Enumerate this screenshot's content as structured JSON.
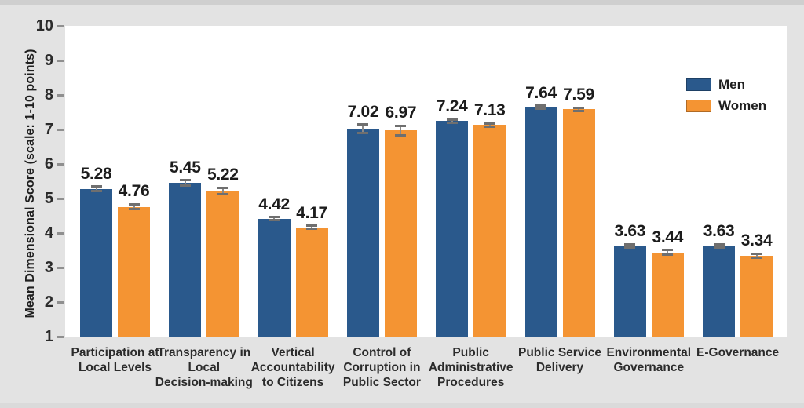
{
  "chart_data": {
    "type": "bar",
    "title": "",
    "xlabel": "",
    "ylabel": "Mean Dimensional Score (scale: 1-10 points)",
    "ylim": [
      1,
      10
    ],
    "yticks": [
      1,
      2,
      3,
      4,
      5,
      6,
      7,
      8,
      9,
      10
    ],
    "grid": false,
    "legend_position": "top-right-inside",
    "value_labels": true,
    "error_bars": true,
    "categories": [
      "Participation at Local Levels",
      "Transparency in Local Decision-making",
      "Vertical Accountability to Citizens",
      "Control of Corruption in Public Sector",
      "Public Administrative Procedures",
      "Public Service Delivery",
      "Environmental Governance",
      "E-Governance"
    ],
    "category_lines": [
      [
        "Participation at",
        "Local Levels"
      ],
      [
        "Transparency in",
        "Local",
        "Decision-making"
      ],
      [
        "Vertical",
        "Accountability",
        "to Citizens"
      ],
      [
        "Control of",
        "Corruption in",
        "Public Sector"
      ],
      [
        "Public",
        "Administrative",
        "Procedures"
      ],
      [
        "Public Service",
        "Delivery"
      ],
      [
        "Environmental",
        "Governance"
      ],
      [
        "E-Governance"
      ]
    ],
    "series": [
      {
        "name": "Men",
        "color": "#2A598C",
        "values": [
          5.28,
          5.45,
          4.42,
          7.02,
          7.24,
          7.64,
          3.63,
          3.63
        ],
        "errors": [
          0.07,
          0.08,
          0.04,
          0.12,
          0.04,
          0.03,
          0.05,
          0.05
        ]
      },
      {
        "name": "Women",
        "color": "#F49433",
        "values": [
          4.76,
          5.22,
          4.17,
          6.97,
          7.13,
          7.59,
          3.44,
          3.34
        ],
        "errors": [
          0.07,
          0.09,
          0.04,
          0.14,
          0.04,
          0.03,
          0.07,
          0.06
        ]
      }
    ]
  },
  "colors": {
    "background": "#E3E3E3",
    "plot_background": "#FFFFFF",
    "men": "#2A598C",
    "women": "#F49433",
    "text": "#1C1C1C",
    "tick": "#8F8F8F",
    "error_bar": "#6F6F6F"
  }
}
